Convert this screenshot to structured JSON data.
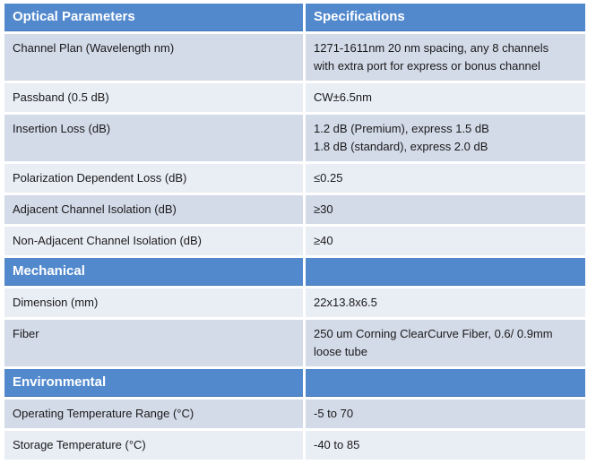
{
  "table": {
    "colors": {
      "header_bg": "#5289cd",
      "band_dark": "#d3dae8",
      "band_light": "#e9edf4",
      "header_text": "#ffffff",
      "body_text": "#1a1a1a"
    },
    "header": {
      "col1": "Optical  Parameters",
      "col2": "Specifications"
    },
    "sections": [
      {
        "title": "",
        "rows": [
          {
            "param": "Channel Plan (Wavelength nm)",
            "value": "1271-1611nm 20 nm spacing, any 8 channels\nwith extra port for express or bonus channel"
          },
          {
            "param": "Passband (0.5 dB)",
            "value": "CW±6.5nm"
          },
          {
            "param": "Insertion Loss (dB)",
            "value": "1.2 dB (Premium), express 1.5 dB\n1.8 dB (standard), express 2.0 dB"
          },
          {
            "param": "Polarization Dependent Loss (dB)",
            "value": "≤0.25"
          },
          {
            "param": "Adjacent Channel Isolation (dB)",
            "value": "≥30"
          },
          {
            "param": "Non-Adjacent Channel Isolation (dB)",
            "value": "≥40"
          }
        ]
      },
      {
        "title": "Mechanical",
        "rows": [
          {
            "param": "Dimension (mm)",
            "value": "22x13.8x6.5"
          },
          {
            "param": "Fiber",
            "value": "250 um Corning ClearCurve  Fiber, 0.6/ 0.9mm\nloose tube"
          }
        ]
      },
      {
        "title": "Environmental",
        "rows": [
          {
            "param": "Operating Temperature Range (°C)",
            "value": "-5 to 70"
          },
          {
            "param": "Storage Temperature (°C)",
            "value": "-40 to 85"
          }
        ]
      }
    ]
  }
}
